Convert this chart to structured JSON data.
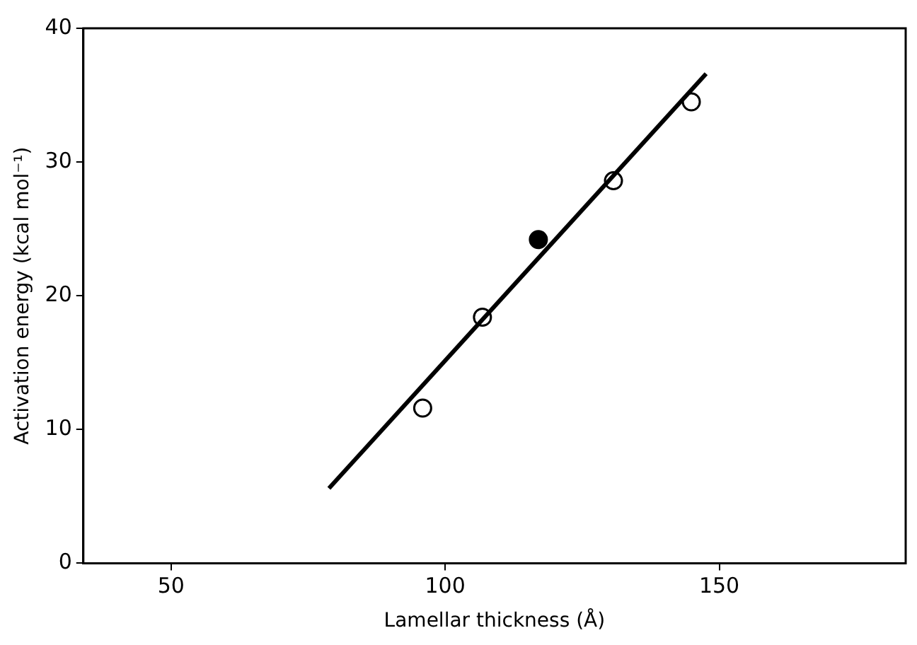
{
  "chart_data": {
    "type": "scatter",
    "xlabel": "Lamellar thickness (Å)",
    "ylabel": "Activation energy (kcal mol⁻¹)",
    "xlim": [
      34,
      184
    ],
    "xticks": [
      50,
      100,
      150
    ],
    "ylim": [
      0,
      40
    ],
    "yticks": [
      0,
      10,
      20,
      30,
      40
    ],
    "grid": false,
    "legend": false,
    "marker": "circle",
    "series": [
      {
        "type": "line",
        "color": "#000000",
        "x": [
          78.8,
          147.6
        ],
        "values": [
          5.6,
          36.6
        ],
        "marker": "none"
      },
      {
        "type": "scatter",
        "color": "#ffffff",
        "x": [
          95.9,
          106.8,
          130.7,
          144.9
        ],
        "values": [
          11.6,
          18.4,
          28.6,
          34.5
        ]
      },
      {
        "type": "scatter",
        "color": "#000000",
        "x": [
          117.0
        ],
        "values": [
          24.2
        ]
      }
    ]
  }
}
